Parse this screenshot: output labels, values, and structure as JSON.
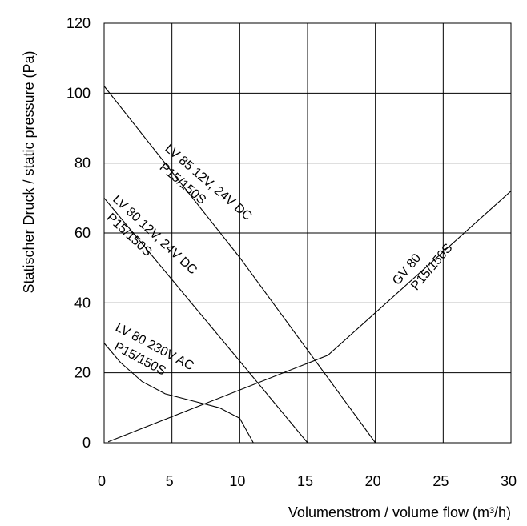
{
  "chart_data": {
    "type": "line",
    "title": "",
    "xlabel": "Volumenstrom / volume flow (m³/h)",
    "ylabel": "Statischer Druck / static pressure (Pa)",
    "xlim": [
      0,
      30
    ],
    "ylim": [
      0,
      120
    ],
    "xticks": [
      0,
      5,
      10,
      15,
      20,
      25,
      30
    ],
    "yticks": [
      0,
      20,
      40,
      60,
      80,
      100,
      120
    ],
    "grid": true,
    "series": [
      {
        "name": "LV 85 12V, 24V DC",
        "subname": "P15/150S",
        "points": [
          [
            0,
            102
          ],
          [
            10,
            53
          ],
          [
            20,
            0
          ]
        ]
      },
      {
        "name": "LV 80 12V, 24V DC",
        "subname": "P15/150S",
        "points": [
          [
            0,
            70
          ],
          [
            15,
            0
          ]
        ]
      },
      {
        "name": "LV 80 230V AC",
        "subname": "P15/150S",
        "points": [
          [
            0,
            28.5
          ],
          [
            1.2,
            23
          ],
          [
            2.8,
            17.5
          ],
          [
            4.5,
            14
          ],
          [
            6.5,
            12
          ],
          [
            8.5,
            10
          ],
          [
            10,
            7
          ],
          [
            11,
            0
          ]
        ]
      },
      {
        "name": "GV 80",
        "subname": "P15/150S",
        "points": [
          [
            0.3,
            0.3
          ],
          [
            16.5,
            25
          ],
          [
            30,
            72
          ]
        ]
      }
    ]
  }
}
